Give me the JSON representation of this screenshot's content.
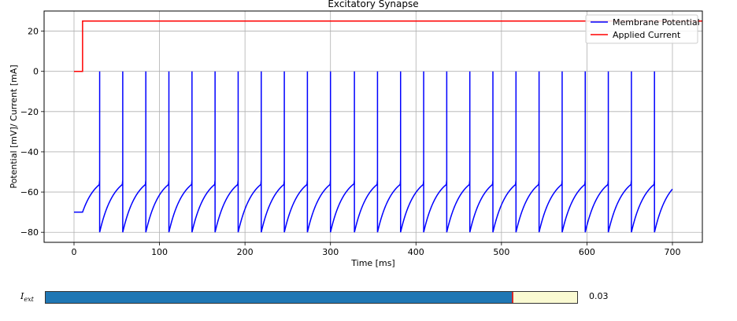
{
  "chart_data": {
    "type": "line",
    "title": "Excitatory Synapse",
    "xlabel": "Time [ms]",
    "ylabel": "Potential [mV]/ Current [mA]",
    "xlim": [
      -35,
      735
    ],
    "ylim": [
      -85,
      30
    ],
    "xticks": [
      0,
      100,
      200,
      300,
      400,
      500,
      600,
      700
    ],
    "yticks": [
      -80,
      -60,
      -40,
      -20,
      0,
      20
    ],
    "grid": true,
    "legend_position": "upper right",
    "series": [
      {
        "name": "Membrane Potential",
        "color": "#0000ff",
        "model": "leaky integrate-and-fire",
        "x_range": [
          0,
          700
        ],
        "start_time": 0,
        "resting_potential": -70,
        "reset_potential": -80,
        "threshold_potential": -54,
        "spike_peak": 0,
        "spike_times": [
          30,
          57,
          84,
          111,
          138,
          165,
          192,
          219,
          246,
          273,
          300,
          328,
          355,
          382,
          409,
          436,
          463,
          490,
          517,
          544,
          571,
          598,
          625,
          652,
          679
        ]
      },
      {
        "name": "Applied Current",
        "color": "#ff0000",
        "x": [
          0,
          10,
          10,
          735
        ],
        "y": [
          0,
          0,
          25,
          25
        ]
      }
    ]
  },
  "slider": {
    "label_main": "I",
    "label_sub": "ext",
    "value_text": "0.03",
    "fill_fraction": 0.878,
    "fill_color": "#1f77b4",
    "track_color": "#fafad2",
    "handle_color": "#d62728"
  }
}
